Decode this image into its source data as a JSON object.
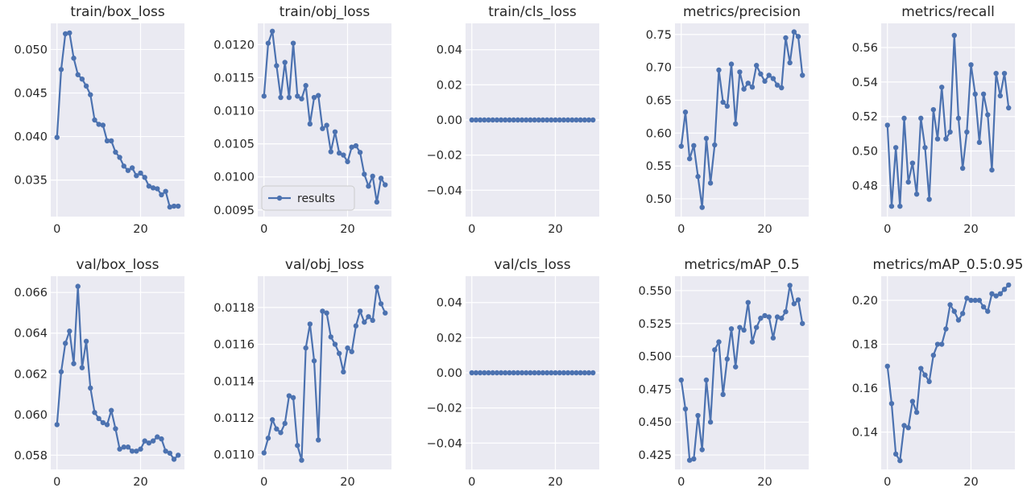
{
  "style": {
    "plot_bg": "#eaeaf2",
    "grid": "#ffffff",
    "series_color": "#4c72b0",
    "legend_bg": "#eaeaf2",
    "legend_border": "#cccccc"
  },
  "chart_data": [
    {
      "type": "line",
      "title": "train/box_loss",
      "x": [
        0,
        1,
        2,
        3,
        4,
        5,
        6,
        7,
        8,
        9,
        10,
        11,
        12,
        13,
        14,
        15,
        16,
        17,
        18,
        19,
        20,
        21,
        22,
        23,
        24,
        25,
        26,
        27,
        28,
        29
      ],
      "series": [
        {
          "name": "results",
          "values": [
            0.0399,
            0.0477,
            0.0518,
            0.0519,
            0.049,
            0.0471,
            0.0466,
            0.0458,
            0.0448,
            0.0419,
            0.0414,
            0.0413,
            0.0395,
            0.0395,
            0.0382,
            0.0376,
            0.0366,
            0.0361,
            0.0364,
            0.0355,
            0.0358,
            0.0353,
            0.0343,
            0.0341,
            0.034,
            0.0333,
            0.0337,
            0.0319,
            0.032,
            0.032
          ]
        }
      ],
      "xlim": [
        -1.5,
        30.5
      ],
      "ylim": [
        0.0308,
        0.053
      ],
      "xticks": [
        0,
        20
      ],
      "yticks": [
        0.035,
        0.04,
        0.045,
        0.05
      ],
      "ytick_labels": [
        "0.035",
        "0.040",
        "0.045",
        "0.050"
      ]
    },
    {
      "type": "line",
      "title": "train/obj_loss",
      "x": [
        0,
        1,
        2,
        3,
        4,
        5,
        6,
        7,
        8,
        9,
        10,
        11,
        12,
        13,
        14,
        15,
        16,
        17,
        18,
        19,
        20,
        21,
        22,
        23,
        24,
        25,
        26,
        27,
        28,
        29
      ],
      "series": [
        {
          "name": "results",
          "values": [
            0.01122,
            0.01202,
            0.0122,
            0.01168,
            0.0112,
            0.01173,
            0.0112,
            0.01202,
            0.01122,
            0.01118,
            0.01138,
            0.0108,
            0.0112,
            0.01123,
            0.01073,
            0.01078,
            0.01038,
            0.01068,
            0.01036,
            0.01033,
            0.01023,
            0.01045,
            0.01047,
            0.01037,
            0.01004,
            0.00986,
            0.01001,
            0.00962,
            0.00998,
            0.00988
          ]
        }
      ],
      "xlim": [
        -1.5,
        30.5
      ],
      "ylim": [
        0.0094,
        0.01232
      ],
      "xticks": [
        0,
        20
      ],
      "yticks": [
        0.0095,
        0.01,
        0.0105,
        0.011,
        0.0115,
        0.012
      ],
      "ytick_labels": [
        "0.0095",
        "0.0100",
        "0.0105",
        "0.0110",
        "0.0115",
        "0.0120"
      ],
      "legend": {
        "label": "results",
        "position": "lower-left"
      }
    },
    {
      "type": "line",
      "title": "train/cls_loss",
      "x": [
        0,
        1,
        2,
        3,
        4,
        5,
        6,
        7,
        8,
        9,
        10,
        11,
        12,
        13,
        14,
        15,
        16,
        17,
        18,
        19,
        20,
        21,
        22,
        23,
        24,
        25,
        26,
        27,
        28,
        29
      ],
      "series": [
        {
          "name": "results",
          "values": [
            0,
            0,
            0,
            0,
            0,
            0,
            0,
            0,
            0,
            0,
            0,
            0,
            0,
            0,
            0,
            0,
            0,
            0,
            0,
            0,
            0,
            0,
            0,
            0,
            0,
            0,
            0,
            0,
            0,
            0
          ]
        }
      ],
      "xlim": [
        -1.5,
        30.5
      ],
      "ylim": [
        -0.055,
        0.055
      ],
      "xticks": [
        0,
        20
      ],
      "yticks": [
        -0.04,
        -0.02,
        0.0,
        0.02,
        0.04
      ],
      "ytick_labels": [
        "−0.04",
        "−0.02",
        "0.00",
        "0.02",
        "0.04"
      ]
    },
    {
      "type": "line",
      "title": "metrics/precision",
      "x": [
        0,
        1,
        2,
        3,
        4,
        5,
        6,
        7,
        8,
        9,
        10,
        11,
        12,
        13,
        14,
        15,
        16,
        17,
        18,
        19,
        20,
        21,
        22,
        23,
        24,
        25,
        26,
        27,
        28,
        29
      ],
      "series": [
        {
          "name": "results",
          "values": [
            0.58,
            0.632,
            0.561,
            0.581,
            0.534,
            0.487,
            0.592,
            0.524,
            0.582,
            0.696,
            0.647,
            0.641,
            0.705,
            0.614,
            0.693,
            0.667,
            0.676,
            0.67,
            0.703,
            0.69,
            0.679,
            0.688,
            0.683,
            0.673,
            0.669,
            0.745,
            0.707,
            0.754,
            0.747,
            0.688
          ]
        }
      ],
      "xlim": [
        -1.5,
        30.5
      ],
      "ylim": [
        0.473,
        0.767
      ],
      "xticks": [
        0,
        20
      ],
      "yticks": [
        0.5,
        0.55,
        0.6,
        0.65,
        0.7,
        0.75
      ],
      "ytick_labels": [
        "0.50",
        "0.55",
        "0.60",
        "0.65",
        "0.70",
        "0.75"
      ]
    },
    {
      "type": "line",
      "title": "metrics/recall",
      "x": [
        0,
        1,
        2,
        3,
        4,
        5,
        6,
        7,
        8,
        9,
        10,
        11,
        12,
        13,
        14,
        15,
        16,
        17,
        18,
        19,
        20,
        21,
        22,
        23,
        24,
        25,
        26,
        27,
        28,
        29
      ],
      "series": [
        {
          "name": "results",
          "values": [
            0.515,
            0.468,
            0.502,
            0.468,
            0.519,
            0.482,
            0.493,
            0.475,
            0.519,
            0.502,
            0.472,
            0.524,
            0.507,
            0.537,
            0.507,
            0.511,
            0.567,
            0.519,
            0.49,
            0.511,
            0.55,
            0.533,
            0.505,
            0.533,
            0.521,
            0.489,
            0.545,
            0.532,
            0.545,
            0.525
          ]
        }
      ],
      "xlim": [
        -1.5,
        30.5
      ],
      "ylim": [
        0.462,
        0.574
      ],
      "xticks": [
        0,
        20
      ],
      "yticks": [
        0.48,
        0.5,
        0.52,
        0.54,
        0.56
      ],
      "ytick_labels": [
        "0.48",
        "0.50",
        "0.52",
        "0.54",
        "0.56"
      ]
    },
    {
      "type": "line",
      "title": "val/box_loss",
      "x": [
        0,
        1,
        2,
        3,
        4,
        5,
        6,
        7,
        8,
        9,
        10,
        11,
        12,
        13,
        14,
        15,
        16,
        17,
        18,
        19,
        20,
        21,
        22,
        23,
        24,
        25,
        26,
        27,
        28,
        29
      ],
      "series": [
        {
          "name": "results",
          "values": [
            0.0595,
            0.0621,
            0.0635,
            0.0641,
            0.0625,
            0.0663,
            0.0623,
            0.0636,
            0.0613,
            0.0601,
            0.0598,
            0.0596,
            0.0595,
            0.0602,
            0.0593,
            0.0583,
            0.0584,
            0.0584,
            0.0582,
            0.0582,
            0.0583,
            0.0587,
            0.0586,
            0.0587,
            0.0589,
            0.0588,
            0.0582,
            0.0581,
            0.0578,
            0.058
          ]
        }
      ],
      "xlim": [
        -1.5,
        30.5
      ],
      "ylim": [
        0.0573,
        0.0668
      ],
      "xticks": [
        0,
        20
      ],
      "yticks": [
        0.058,
        0.06,
        0.062,
        0.064,
        0.066
      ],
      "ytick_labels": [
        "0.058",
        "0.060",
        "0.062",
        "0.064",
        "0.066"
      ]
    },
    {
      "type": "line",
      "title": "val/obj_loss",
      "x": [
        0,
        1,
        2,
        3,
        4,
        5,
        6,
        7,
        8,
        9,
        10,
        11,
        12,
        13,
        14,
        15,
        16,
        17,
        18,
        19,
        20,
        21,
        22,
        23,
        24,
        25,
        26,
        27,
        28,
        29
      ],
      "series": [
        {
          "name": "results",
          "values": [
            0.01101,
            0.01109,
            0.01119,
            0.01114,
            0.01112,
            0.01117,
            0.01132,
            0.01131,
            0.01105,
            0.01097,
            0.01158,
            0.01171,
            0.01151,
            0.01108,
            0.01178,
            0.01177,
            0.01164,
            0.0116,
            0.01155,
            0.01145,
            0.01158,
            0.01156,
            0.0117,
            0.01178,
            0.01172,
            0.01175,
            0.01173,
            0.01191,
            0.01182,
            0.01177
          ]
        }
      ],
      "xlim": [
        -1.5,
        30.5
      ],
      "ylim": [
        0.01092,
        0.01197
      ],
      "xticks": [
        0,
        20
      ],
      "yticks": [
        0.011,
        0.0112,
        0.0114,
        0.0116,
        0.0118
      ],
      "ytick_labels": [
        "0.0110",
        "0.0112",
        "0.0114",
        "0.0116",
        "0.0118"
      ]
    },
    {
      "type": "line",
      "title": "val/cls_loss",
      "x": [
        0,
        1,
        2,
        3,
        4,
        5,
        6,
        7,
        8,
        9,
        10,
        11,
        12,
        13,
        14,
        15,
        16,
        17,
        18,
        19,
        20,
        21,
        22,
        23,
        24,
        25,
        26,
        27,
        28,
        29
      ],
      "series": [
        {
          "name": "results",
          "values": [
            0,
            0,
            0,
            0,
            0,
            0,
            0,
            0,
            0,
            0,
            0,
            0,
            0,
            0,
            0,
            0,
            0,
            0,
            0,
            0,
            0,
            0,
            0,
            0,
            0,
            0,
            0,
            0,
            0,
            0
          ]
        }
      ],
      "xlim": [
        -1.5,
        30.5
      ],
      "ylim": [
        -0.055,
        0.055
      ],
      "xticks": [
        0,
        20
      ],
      "yticks": [
        -0.04,
        -0.02,
        0.0,
        0.02,
        0.04
      ],
      "ytick_labels": [
        "−0.04",
        "−0.02",
        "0.00",
        "0.02",
        "0.04"
      ]
    },
    {
      "type": "line",
      "title": "metrics/mAP_0.5",
      "x": [
        0,
        1,
        2,
        3,
        4,
        5,
        6,
        7,
        8,
        9,
        10,
        11,
        12,
        13,
        14,
        15,
        16,
        17,
        18,
        19,
        20,
        21,
        22,
        23,
        24,
        25,
        26,
        27,
        28,
        29
      ],
      "series": [
        {
          "name": "results",
          "values": [
            0.482,
            0.46,
            0.421,
            0.422,
            0.455,
            0.429,
            0.482,
            0.45,
            0.505,
            0.511,
            0.471,
            0.498,
            0.521,
            0.492,
            0.522,
            0.52,
            0.541,
            0.511,
            0.522,
            0.529,
            0.531,
            0.53,
            0.514,
            0.53,
            0.529,
            0.534,
            0.554,
            0.54,
            0.543,
            0.525
          ]
        }
      ],
      "xlim": [
        -1.5,
        30.5
      ],
      "ylim": [
        0.414,
        0.561
      ],
      "xticks": [
        0,
        20
      ],
      "yticks": [
        0.425,
        0.45,
        0.475,
        0.5,
        0.525,
        0.55
      ],
      "ytick_labels": [
        "0.425",
        "0.450",
        "0.475",
        "0.500",
        "0.525",
        "0.550"
      ]
    },
    {
      "type": "line",
      "title": "metrics/mAP_0.5:0.95",
      "x": [
        0,
        1,
        2,
        3,
        4,
        5,
        6,
        7,
        8,
        9,
        10,
        11,
        12,
        13,
        14,
        15,
        16,
        17,
        18,
        19,
        20,
        21,
        22,
        23,
        24,
        25,
        26,
        27,
        28,
        29
      ],
      "series": [
        {
          "name": "results",
          "values": [
            0.17,
            0.153,
            0.13,
            0.127,
            0.143,
            0.142,
            0.154,
            0.149,
            0.169,
            0.166,
            0.163,
            0.175,
            0.18,
            0.18,
            0.187,
            0.198,
            0.195,
            0.191,
            0.194,
            0.201,
            0.2,
            0.2,
            0.2,
            0.197,
            0.195,
            0.203,
            0.202,
            0.203,
            0.205,
            0.207
          ]
        }
      ],
      "xlim": [
        -1.5,
        30.5
      ],
      "ylim": [
        0.123,
        0.211
      ],
      "xticks": [
        0,
        20
      ],
      "yticks": [
        0.14,
        0.16,
        0.18,
        0.2
      ],
      "ytick_labels": [
        "0.14",
        "0.16",
        "0.18",
        "0.20"
      ]
    }
  ]
}
